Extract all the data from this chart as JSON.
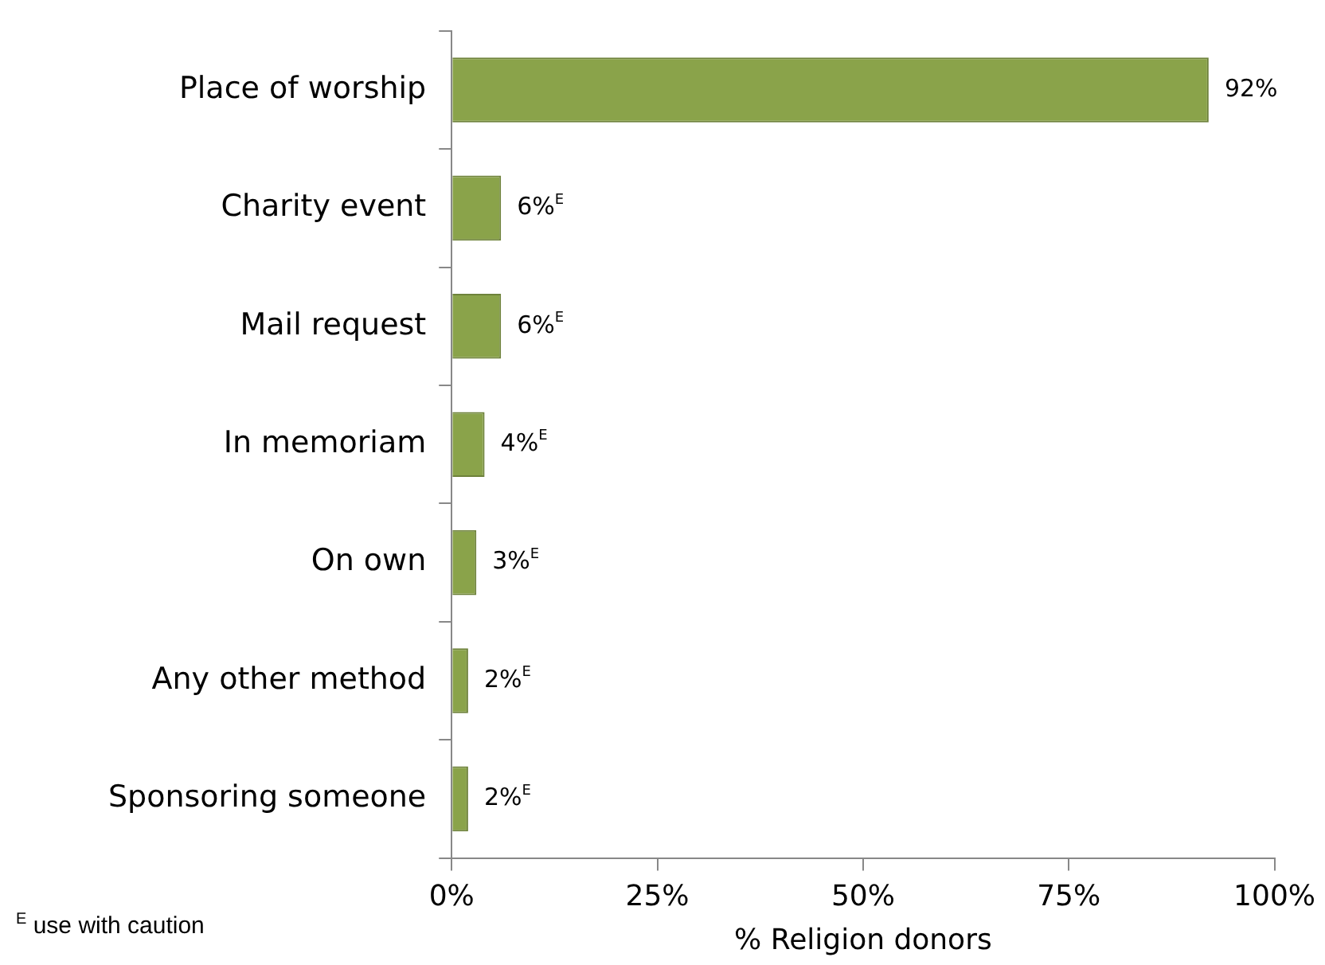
{
  "chart_data": {
    "type": "bar",
    "orientation": "horizontal",
    "categories": [
      "Place of worship",
      "Charity event",
      "Mail request",
      "In memoriam",
      "On own",
      "Any other method",
      "Sponsoring someone"
    ],
    "values": [
      92,
      6,
      6,
      4,
      3,
      2,
      2
    ],
    "value_labels": [
      "92%",
      "6%$^{E}$",
      "6%$^{E}$",
      "4%$^{E}$",
      "3%$^{E}$",
      "2%$^{E}$",
      "2%$^{E}$"
    ],
    "color": "#8aa34a",
    "xlim": [
      0,
      100
    ],
    "xticks": [
      {
        "value": 0,
        "label": "0%"
      },
      {
        "value": 25,
        "label": "25%"
      },
      {
        "value": 50,
        "label": "50%"
      },
      {
        "value": 75,
        "label": "75%"
      },
      {
        "value": 100,
        "label": "100%"
      }
    ],
    "xlabel": "% Religion donors",
    "grid": false,
    "legend": false,
    "annotations": [
      "$^{E}$ use with caution"
    ]
  }
}
